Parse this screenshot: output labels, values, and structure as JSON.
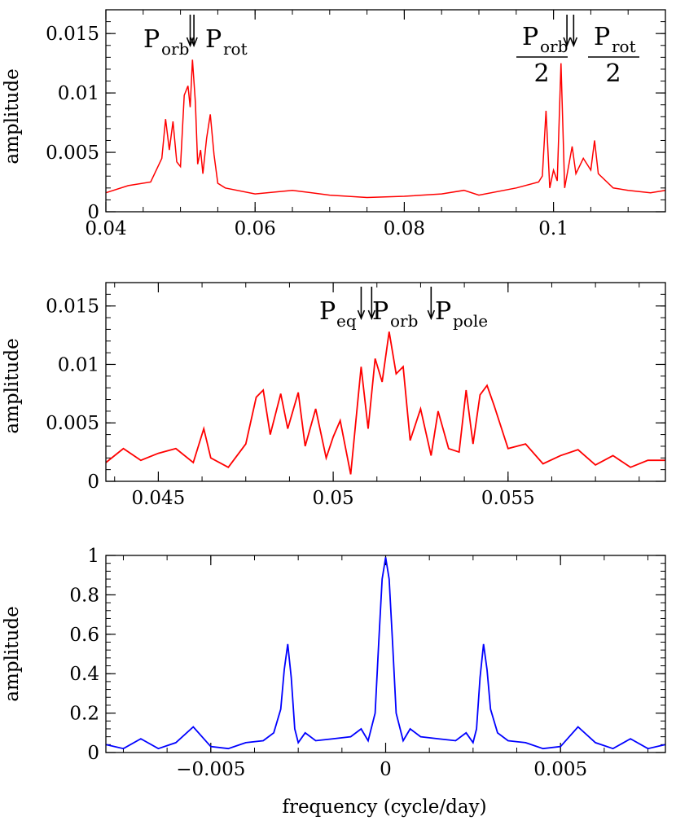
{
  "chart_data": [
    {
      "type": "line",
      "panel": "top",
      "xlabel": "",
      "ylabel": "amplitude",
      "xlim": [
        0.04,
        0.115
      ],
      "ylim": [
        0,
        0.017
      ],
      "xticks": [
        {
          "value": 0.04,
          "label": "0.04"
        },
        {
          "value": 0.06,
          "label": "0.06"
        },
        {
          "value": 0.08,
          "label": "0.08"
        },
        {
          "value": 0.1,
          "label": "0.1"
        }
      ],
      "yticks": [
        {
          "value": 0,
          "label": "0"
        },
        {
          "value": 0.005,
          "label": "0.005"
        },
        {
          "value": 0.01,
          "label": "0.01"
        },
        {
          "value": 0.015,
          "label": "0.015"
        }
      ],
      "color": "#ff0000",
      "series": [
        {
          "x": [
            0.04,
            0.043,
            0.046,
            0.0475,
            0.048,
            0.0485,
            0.049,
            0.0495,
            0.05,
            0.0505,
            0.051,
            0.0513,
            0.0516,
            0.052,
            0.0523,
            0.0527,
            0.053,
            0.0535,
            0.054,
            0.0545,
            0.055,
            0.056,
            0.06,
            0.065,
            0.07,
            0.075,
            0.08,
            0.085,
            0.088,
            0.09,
            0.095,
            0.098,
            0.0985,
            0.099,
            0.0995,
            0.1,
            0.1005,
            0.101,
            0.1015,
            0.1025,
            0.103,
            0.104,
            0.105,
            0.1055,
            0.106,
            0.108,
            0.11,
            0.113,
            0.115
          ],
          "y": [
            0.0016,
            0.0022,
            0.0025,
            0.0045,
            0.0078,
            0.0052,
            0.0076,
            0.0042,
            0.0038,
            0.0098,
            0.0106,
            0.0088,
            0.0128,
            0.0092,
            0.004,
            0.0052,
            0.0032,
            0.0062,
            0.0082,
            0.0048,
            0.0024,
            0.002,
            0.0015,
            0.0018,
            0.0014,
            0.0012,
            0.0013,
            0.0015,
            0.0018,
            0.0014,
            0.002,
            0.0025,
            0.003,
            0.0085,
            0.002,
            0.0035,
            0.0026,
            0.0125,
            0.002,
            0.0055,
            0.0032,
            0.0045,
            0.0035,
            0.006,
            0.0032,
            0.002,
            0.0018,
            0.0016,
            0.0018
          ]
        }
      ],
      "annotations": [
        {
          "main": "P",
          "sub": "orb",
          "type": "label"
        },
        {
          "main": "P",
          "sub": "rot",
          "type": "label"
        },
        {
          "main": "P",
          "sub": "orb",
          "denominator": "2",
          "type": "fraction"
        },
        {
          "main": "P",
          "sub": "rot",
          "denominator": "2",
          "type": "fraction"
        }
      ],
      "arrows_x": [
        0.0513,
        0.0518,
        0.1018,
        0.1027
      ]
    },
    {
      "type": "line",
      "panel": "middle",
      "xlabel": "",
      "ylabel": "amplitude",
      "xlim": [
        0.0435,
        0.0595
      ],
      "ylim": [
        0,
        0.017
      ],
      "xticks": [
        {
          "value": 0.045,
          "label": "0.045"
        },
        {
          "value": 0.05,
          "label": "0.05"
        },
        {
          "value": 0.055,
          "label": "0.055"
        }
      ],
      "yticks": [
        {
          "value": 0,
          "label": "0"
        },
        {
          "value": 0.005,
          "label": "0.005"
        },
        {
          "value": 0.01,
          "label": "0.01"
        },
        {
          "value": 0.015,
          "label": "0.015"
        }
      ],
      "color": "#ff0000",
      "series": [
        {
          "x": [
            0.0435,
            0.044,
            0.0445,
            0.045,
            0.0455,
            0.046,
            0.0463,
            0.0465,
            0.047,
            0.0475,
            0.0478,
            0.048,
            0.0482,
            0.0485,
            0.0487,
            0.049,
            0.0492,
            0.0495,
            0.0498,
            0.05,
            0.0502,
            0.0505,
            0.0508,
            0.051,
            0.0512,
            0.0514,
            0.0516,
            0.0518,
            0.052,
            0.0522,
            0.0525,
            0.0528,
            0.053,
            0.0533,
            0.0536,
            0.0538,
            0.054,
            0.0542,
            0.0544,
            0.0546,
            0.055,
            0.0555,
            0.056,
            0.0565,
            0.057,
            0.0575,
            0.058,
            0.0585,
            0.059,
            0.0595
          ],
          "y": [
            0.0016,
            0.0028,
            0.0018,
            0.0024,
            0.0028,
            0.0016,
            0.0045,
            0.002,
            0.0012,
            0.0032,
            0.0072,
            0.0078,
            0.004,
            0.0075,
            0.0045,
            0.0076,
            0.003,
            0.0062,
            0.002,
            0.0038,
            0.0052,
            0.0006,
            0.0098,
            0.0045,
            0.0105,
            0.0085,
            0.0128,
            0.0092,
            0.0098,
            0.0035,
            0.0062,
            0.0022,
            0.006,
            0.0028,
            0.0025,
            0.0078,
            0.0032,
            0.0074,
            0.0082,
            0.0065,
            0.0028,
            0.0032,
            0.0015,
            0.0022,
            0.0027,
            0.0014,
            0.0022,
            0.0012,
            0.0018,
            0.0018
          ]
        }
      ],
      "annotations": [
        {
          "main": "P",
          "sub": "eq",
          "type": "label"
        },
        {
          "main": "P",
          "sub": "orb",
          "type": "label"
        },
        {
          "main": "P",
          "sub": "pole",
          "type": "label"
        }
      ],
      "arrows_x": [
        0.0508,
        0.0511,
        0.0528
      ]
    },
    {
      "type": "line",
      "panel": "bottom",
      "xlabel": "frequency (cycle/day)",
      "ylabel": "amplitude",
      "xlim": [
        -0.008,
        0.008
      ],
      "ylim": [
        0,
        1
      ],
      "xticks": [
        {
          "value": -0.005,
          "label": "−0.005"
        },
        {
          "value": 0,
          "label": "0"
        },
        {
          "value": 0.005,
          "label": "0.005"
        }
      ],
      "yticks": [
        {
          "value": 0,
          "label": "0"
        },
        {
          "value": 0.2,
          "label": "0.2"
        },
        {
          "value": 0.4,
          "label": "0.4"
        },
        {
          "value": 0.6,
          "label": "0.6"
        },
        {
          "value": 0.8,
          "label": "0.8"
        },
        {
          "value": 1,
          "label": "1"
        }
      ],
      "color": "#0000ff",
      "series": [
        {
          "x": [
            -0.008,
            -0.0075,
            -0.007,
            -0.0065,
            -0.006,
            -0.0055,
            -0.005,
            -0.0045,
            -0.004,
            -0.0035,
            -0.0032,
            -0.003,
            -0.0029,
            -0.0028,
            -0.0027,
            -0.0026,
            -0.0025,
            -0.0023,
            -0.002,
            -0.0015,
            -0.001,
            -0.0007,
            -0.0005,
            -0.0003,
            -0.0002,
            -0.0001,
            0,
            0.0001,
            0.0002,
            0.0003,
            0.0005,
            0.0007,
            0.001,
            0.0015,
            0.002,
            0.0023,
            0.0025,
            0.0026,
            0.0027,
            0.0028,
            0.0029,
            0.003,
            0.0032,
            0.0035,
            0.004,
            0.0045,
            0.005,
            0.0055,
            0.006,
            0.0065,
            0.007,
            0.0075,
            0.008
          ],
          "y": [
            0.04,
            0.02,
            0.07,
            0.02,
            0.05,
            0.13,
            0.03,
            0.02,
            0.05,
            0.06,
            0.1,
            0.22,
            0.42,
            0.55,
            0.38,
            0.12,
            0.05,
            0.1,
            0.06,
            0.07,
            0.08,
            0.12,
            0.06,
            0.2,
            0.55,
            0.88,
            0.99,
            0.88,
            0.55,
            0.2,
            0.06,
            0.12,
            0.08,
            0.07,
            0.06,
            0.1,
            0.05,
            0.12,
            0.38,
            0.55,
            0.42,
            0.22,
            0.1,
            0.06,
            0.05,
            0.02,
            0.03,
            0.13,
            0.05,
            0.02,
            0.07,
            0.02,
            0.04
          ]
        }
      ]
    }
  ]
}
